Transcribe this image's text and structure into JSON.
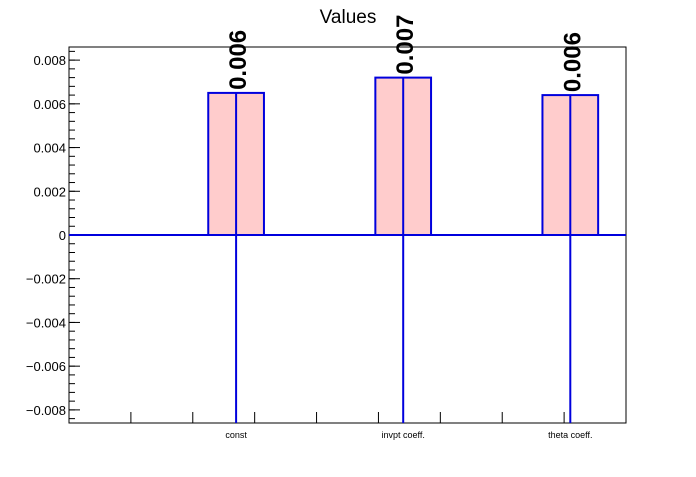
{
  "chart_data": {
    "type": "bar",
    "title": "Values",
    "xlabel": "",
    "ylabel": "",
    "categories": [
      "const",
      "invpt coeff.",
      "theta coeff."
    ],
    "values": [
      0.0065,
      0.0072,
      0.0064
    ],
    "value_labels": [
      "0.006",
      "0.007",
      "0.006"
    ],
    "error_low": [
      -0.0086,
      -0.0086,
      -0.0086
    ],
    "ylim": [
      -0.0086,
      0.0086
    ],
    "yticks": [
      -0.008,
      -0.006,
      -0.004,
      -0.002,
      0,
      0.002,
      0.004,
      0.006,
      0.008
    ],
    "ytick_labels": [
      "−0.008",
      "−0.006",
      "−0.004",
      "−0.002",
      "0",
      "0.002",
      "0.004",
      "0.006",
      "0.008"
    ],
    "grid": false,
    "legend": "none",
    "colors": {
      "bar_fill": "#ffcccc",
      "bar_edge": "#0000dd",
      "axis": "#000000"
    }
  }
}
